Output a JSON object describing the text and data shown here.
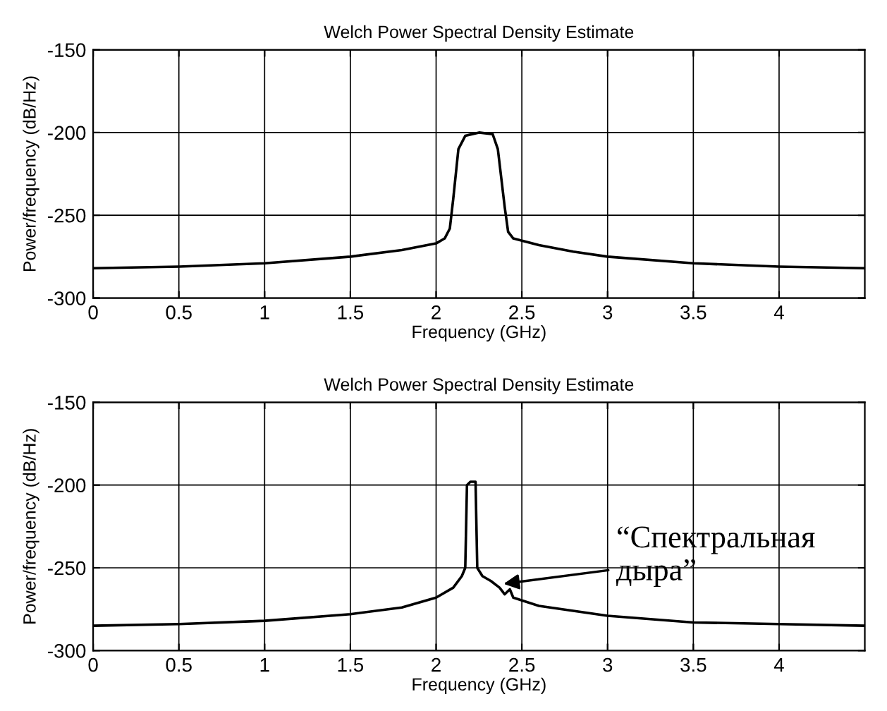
{
  "chart_data": [
    {
      "type": "line",
      "title": "Welch Power Spectral Density Estimate",
      "xlabel": "Frequency (GHz)",
      "ylabel": "Power/frequency (dB/Hz)",
      "x": [
        0,
        0.5,
        1,
        1.5,
        1.8,
        2.0,
        2.05,
        2.08,
        2.1,
        2.13,
        2.17,
        2.25,
        2.33,
        2.36,
        2.4,
        2.42,
        2.45,
        2.6,
        2.8,
        3.0,
        3.5,
        4.0,
        4.5
      ],
      "series": [
        {
          "color": "#000000",
          "values": [
            -282,
            -281,
            -279,
            -275,
            -271,
            -267,
            -264,
            -258,
            -240,
            -210,
            -202,
            -200,
            -201,
            -210,
            -245,
            -260,
            -264,
            -268,
            -272,
            -275,
            -279,
            -281,
            -282
          ]
        }
      ],
      "xlim": [
        0,
        4.5
      ],
      "xticks": [
        0,
        0.5,
        1,
        1.5,
        2,
        2.5,
        3,
        3.5,
        4
      ],
      "ylim": [
        -300,
        -150
      ],
      "yticks": [
        -300,
        -250,
        -200,
        -150
      ],
      "grid": true,
      "line_style": "solid"
    },
    {
      "type": "line",
      "title": "Welch Power Spectral Density Estimate",
      "xlabel": "Frequency (GHz)",
      "ylabel": "Power/frequency (dB/Hz)",
      "x": [
        0,
        0.5,
        1,
        1.5,
        1.8,
        2.0,
        2.1,
        2.15,
        2.17,
        2.18,
        2.2,
        2.23,
        2.24,
        2.27,
        2.32,
        2.37,
        2.4,
        2.43,
        2.45,
        2.6,
        3.0,
        3.5,
        4.0,
        4.5
      ],
      "series": [
        {
          "color": "#000000",
          "values": [
            -285,
            -284,
            -282,
            -278,
            -274,
            -268,
            -262,
            -255,
            -250,
            -200,
            -198,
            -198,
            -250,
            -255,
            -258,
            -262,
            -266,
            -263,
            -268,
            -273,
            -279,
            -283,
            -284,
            -285
          ]
        }
      ],
      "xlim": [
        0,
        4.5
      ],
      "xticks": [
        0,
        0.5,
        1,
        1.5,
        2,
        2.5,
        3,
        3.5,
        4
      ],
      "ylim": [
        -300,
        -150
      ],
      "yticks": [
        -300,
        -250,
        -200,
        -150
      ],
      "grid": true,
      "line_style": "solid",
      "annotations": [
        {
          "text": "“Спектральная\nдыра”",
          "x": 2.37,
          "y": -260
        }
      ]
    }
  ]
}
